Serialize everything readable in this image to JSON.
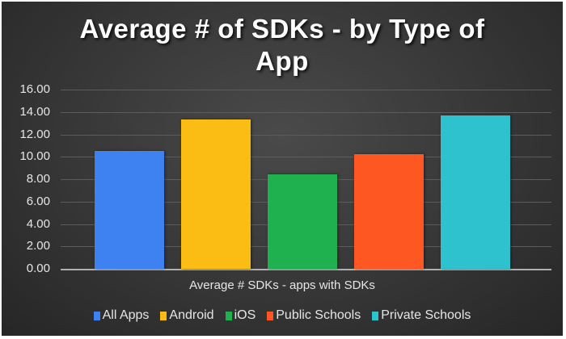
{
  "chart_data": {
    "type": "bar",
    "title": "Average # of SDKs - by Type of App",
    "title_lines": [
      "Average # of SDKs - by Type of",
      "App"
    ],
    "xlabel": "Average # SDKs -  apps with SDKs",
    "ylabel": "",
    "categories": [
      "Average # SDKs -  apps with SDKs"
    ],
    "series": [
      {
        "name": "All Apps",
        "values": [
          10.5
        ],
        "color": "#3d82f0"
      },
      {
        "name": "Android",
        "values": [
          13.3
        ],
        "color": "#fbbd14"
      },
      {
        "name": "iOS",
        "values": [
          8.4
        ],
        "color": "#1fb150"
      },
      {
        "name": "Public Schools",
        "values": [
          10.2
        ],
        "color": "#ff5722"
      },
      {
        "name": "Private Schools",
        "values": [
          13.7
        ],
        "color": "#2ec2cf"
      }
    ],
    "ylim": [
      0,
      16
    ],
    "yticks": [
      "0.00",
      "2.00",
      "4.00",
      "6.00",
      "8.00",
      "10.00",
      "12.00",
      "14.00",
      "16.00"
    ],
    "grid": true,
    "legend_position": "bottom"
  }
}
